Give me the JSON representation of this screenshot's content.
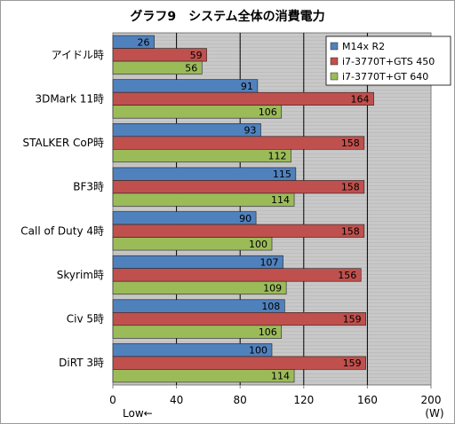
{
  "chart_data": {
    "type": "bar",
    "orientation": "horizontal",
    "title": "グラフ9　システム全体の消費電力",
    "categories": [
      "アイドル時",
      "3DMark 11時",
      "STALKER CoP時",
      "BF3時",
      "Call of Duty 4時",
      "Skyrim時",
      "Civ 5時",
      "DiRT 3時"
    ],
    "series": [
      {
        "name": "M14x R2",
        "color": "#4f81bd",
        "values": [
          26,
          91,
          93,
          115,
          90,
          107,
          108,
          100
        ]
      },
      {
        "name": "i7-3770T+GTS 450",
        "color": "#c0504d",
        "values": [
          59,
          164,
          158,
          158,
          158,
          156,
          159,
          159
        ]
      },
      {
        "name": "i7-3770T+GT 640",
        "color": "#9bbb59",
        "values": [
          56,
          106,
          112,
          114,
          100,
          109,
          106,
          114
        ]
      }
    ],
    "xlim": [
      0,
      200
    ],
    "xticks": [
      0,
      40,
      80,
      120,
      160,
      200
    ],
    "xunit": "(W)",
    "direction_note": "Low←",
    "grid": true,
    "legend_position": "top-right"
  }
}
